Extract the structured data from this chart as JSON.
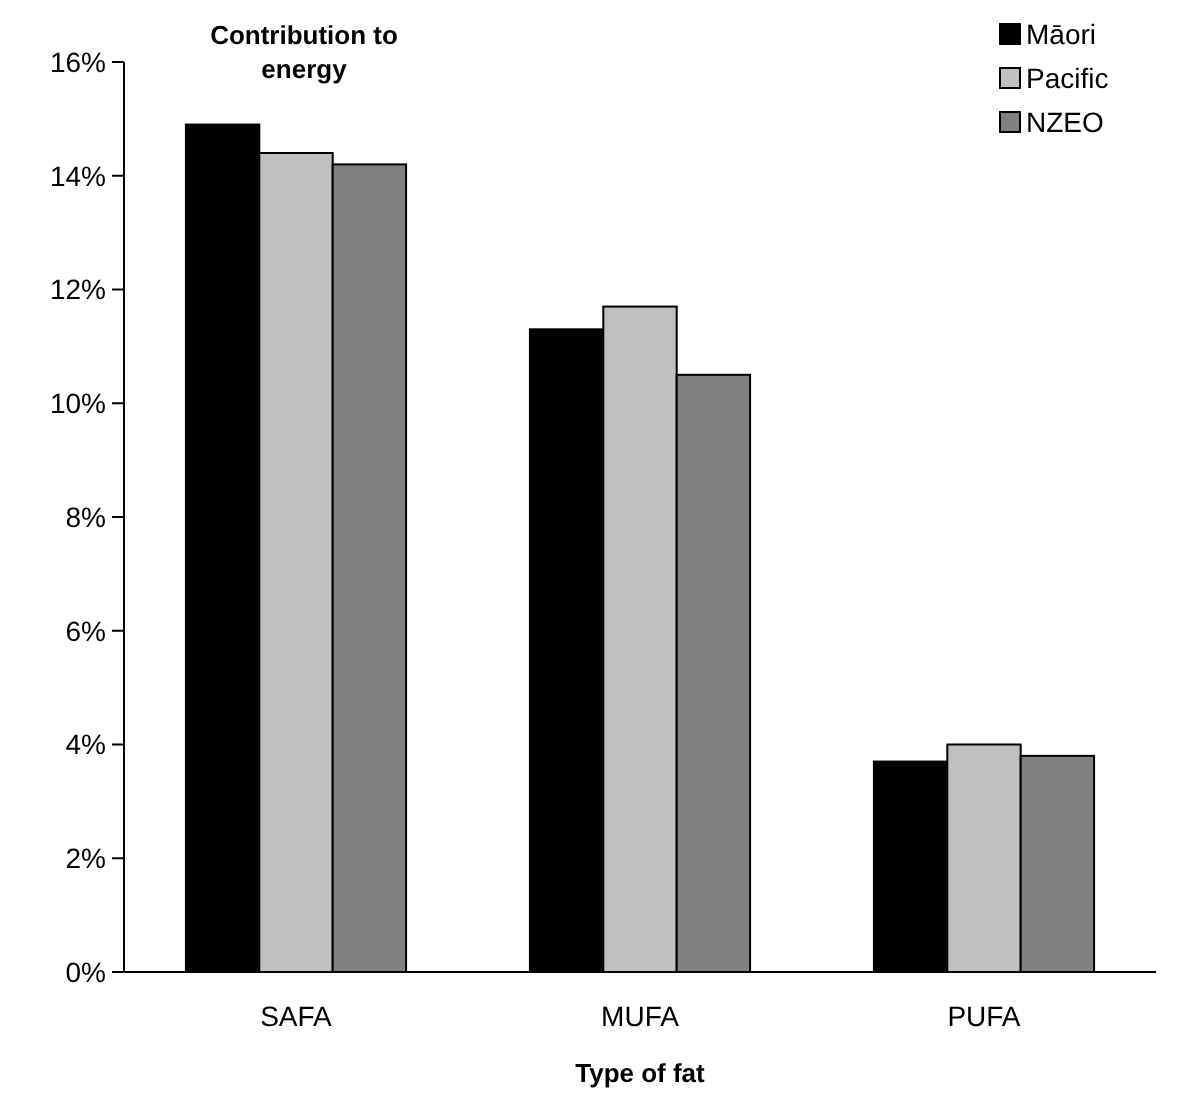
{
  "chart_data": {
    "type": "bar",
    "title": "Contribution to energy",
    "xlabel": "Type of fat",
    "categories": [
      "SAFA",
      "MUFA",
      "PUFA"
    ],
    "series": [
      {
        "name": "Māori",
        "color": "#000000",
        "values": [
          14.9,
          11.3,
          3.7
        ]
      },
      {
        "name": "Pacific",
        "color": "#c0c0c0",
        "values": [
          14.4,
          11.7,
          4.0
        ]
      },
      {
        "name": "NZEO",
        "color": "#808080",
        "values": [
          14.2,
          10.5,
          3.8
        ]
      }
    ],
    "ylim": [
      0,
      16
    ],
    "yticks": [
      {
        "value": 0,
        "label": "0%"
      },
      {
        "value": 2,
        "label": "2%"
      },
      {
        "value": 4,
        "label": "4%"
      },
      {
        "value": 6,
        "label": "6%"
      },
      {
        "value": 8,
        "label": "8%"
      },
      {
        "value": 10,
        "label": "10%"
      },
      {
        "value": 12,
        "label": "12%"
      },
      {
        "value": 14,
        "label": "14%"
      },
      {
        "value": 16,
        "label": "16%"
      }
    ],
    "grid": false,
    "legend": "top right"
  }
}
